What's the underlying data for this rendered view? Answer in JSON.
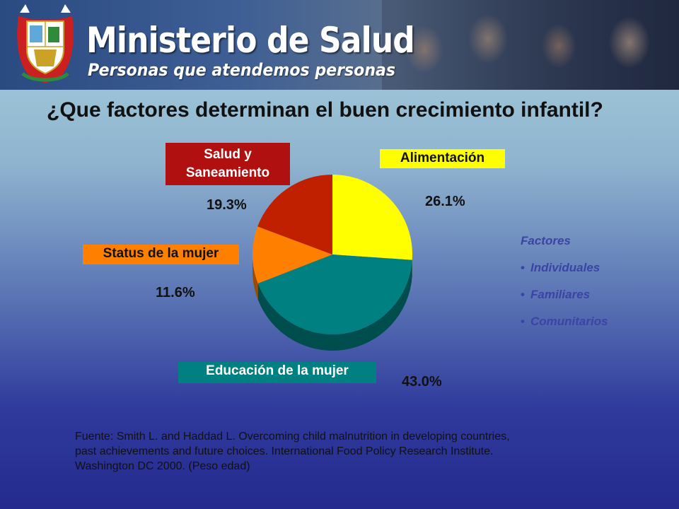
{
  "header": {
    "title": "Ministerio de Salud",
    "tagline": "Personas que atendemos personas"
  },
  "chart_data": {
    "type": "pie",
    "title": "¿Que factores determinan el buen crecimiento infantil?",
    "slices": [
      {
        "label": "Alimentación",
        "value": 26.1,
        "value_label": "26.1%",
        "color": "#ffff00",
        "side_color": "#a8a800",
        "label_bg": "#ffff00",
        "label_fg": "#111111"
      },
      {
        "label": "Educación de la mujer",
        "value": 43.0,
        "value_label": "43.0%",
        "color": "#008080",
        "side_color": "#004d4d",
        "label_bg": "#008080",
        "label_fg": "#ffffff"
      },
      {
        "label": "Status de la mujer",
        "value": 11.6,
        "value_label": "11.6%",
        "color": "#ff8000",
        "side_color": "#9a4d00",
        "label_bg": "#ff8000",
        "label_fg": "#111111"
      },
      {
        "label": "Salud y Saneamiento",
        "label_lines": [
          "Salud y",
          "Saneamiento"
        ],
        "value": 19.3,
        "value_label": "19.3%",
        "color": "#c02000",
        "side_color": "#701200",
        "label_bg": "#b01010",
        "label_fg": "#ffffff"
      }
    ],
    "start_direction": "12 o'clock",
    "direction": "clockwise",
    "style": "3d"
  },
  "factors": {
    "title": "Factores",
    "items": [
      "Individuales",
      "Familiares",
      "Comunitarios"
    ]
  },
  "source": {
    "lines": [
      "Fuente: Smith L. and Haddad L. Overcoming child malnutrition in developing countries,",
      "past achievements and future choices. International Food Policy Research Institute.",
      "Washington DC 2000. (Peso edad)"
    ]
  },
  "colors": {
    "question_text": "#111111",
    "factors_text": "#3b44a5"
  }
}
